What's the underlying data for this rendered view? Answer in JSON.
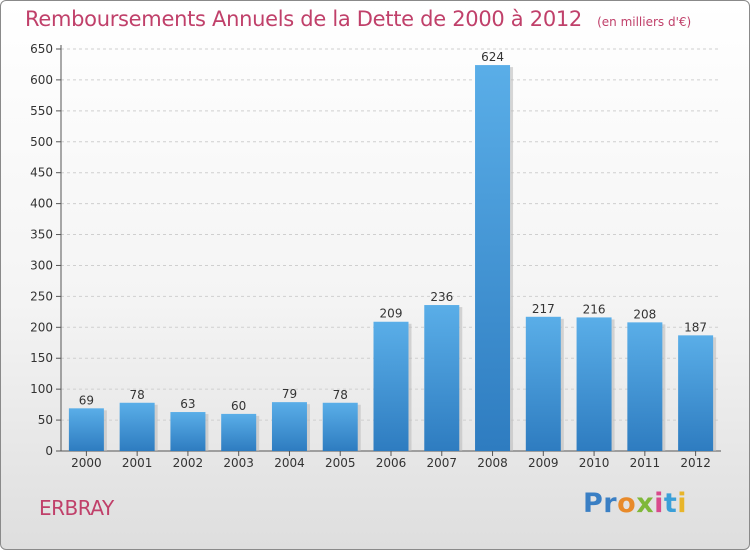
{
  "title": "Remboursements Annuels de la Dette de 2000 à 2012",
  "unit": "(en milliers d'€)",
  "location": "ERBRAY",
  "brand": {
    "letters": [
      {
        "ch": "P",
        "color": "#3a7fc4"
      },
      {
        "ch": "r",
        "color": "#3a7fc4"
      },
      {
        "ch": "o",
        "color": "#e88a2a"
      },
      {
        "ch": "x",
        "color": "#7fb83a"
      },
      {
        "ch": "i",
        "color": "#d94a8c"
      },
      {
        "ch": "t",
        "color": "#3a9fd8"
      },
      {
        "ch": "i",
        "color": "#e8b52a"
      }
    ]
  },
  "colors": {
    "bar_top": "#5aaee8",
    "bar_bottom": "#2e7cc0",
    "title": "#c0406a"
  },
  "chart_data": {
    "type": "bar",
    "title": "Remboursements Annuels de la Dette de 2000 à 2012",
    "unit": "(en milliers d'€)",
    "categories": [
      "2000",
      "2001",
      "2002",
      "2003",
      "2004",
      "2005",
      "2006",
      "2007",
      "2008",
      "2009",
      "2010",
      "2011",
      "2012"
    ],
    "values": [
      69,
      78,
      63,
      60,
      79,
      78,
      209,
      236,
      624,
      217,
      216,
      208,
      187
    ],
    "ylim": [
      0,
      650
    ],
    "yticks": [
      0,
      50,
      100,
      150,
      200,
      250,
      300,
      350,
      400,
      450,
      500,
      550,
      600,
      650
    ],
    "grid": true,
    "legend": "none"
  }
}
